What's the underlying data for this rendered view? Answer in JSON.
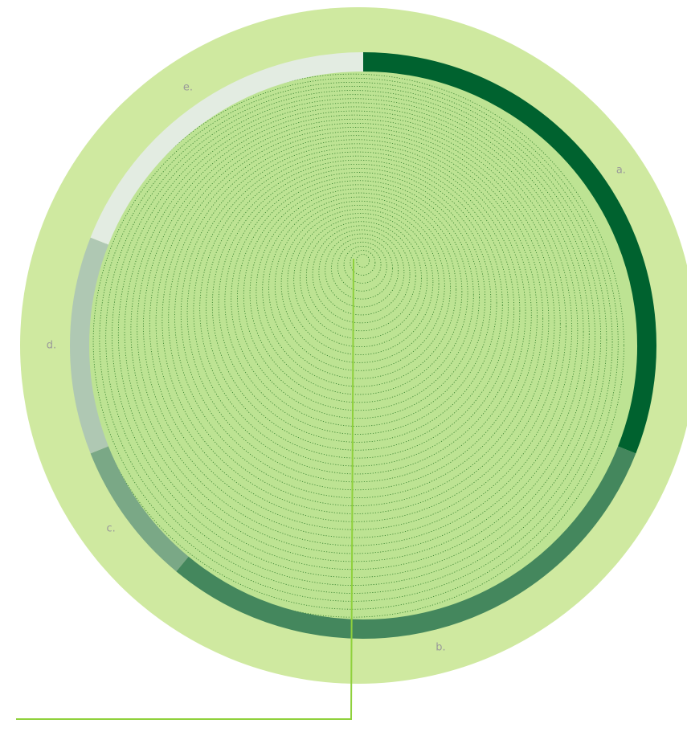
{
  "chart_data": {
    "type": "donut",
    "categories": [
      "a.",
      "b.",
      "c.",
      "d.",
      "e."
    ],
    "values": [
      31,
      30,
      8,
      12,
      19
    ],
    "colors": [
      "#00622f",
      "#44875d",
      "#7aa886",
      "#afc8b3",
      "#e3ece2"
    ]
  }
}
